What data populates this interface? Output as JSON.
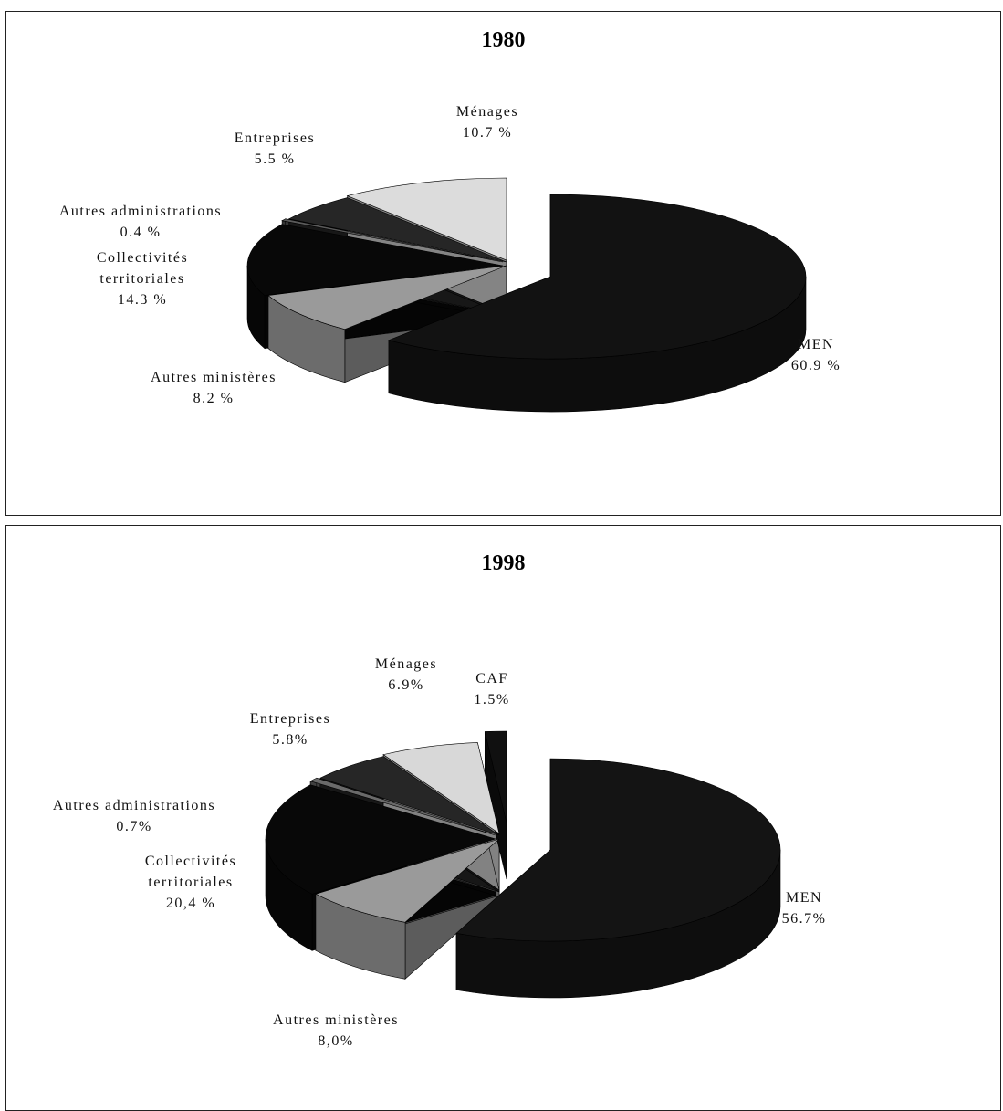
{
  "chart_data": [
    {
      "type": "pie",
      "title": "1980",
      "categories": [
        "MEN",
        "Autres ministères",
        "Collectivités territoriales",
        "Autres administrations",
        "Entreprises",
        "Ménages"
      ],
      "values": [
        60.9,
        8.2,
        14.3,
        0.4,
        5.5,
        10.7
      ],
      "value_labels": [
        "60.9 %",
        "8.2 %",
        "14.3 %",
        "0.4 %",
        "5.5 %",
        "10.7 %"
      ],
      "colors": [
        "#121212",
        "#9a9a9a",
        "#080808",
        "#5a5a5a",
        "#262626",
        "#dcdcdc"
      ]
    },
    {
      "type": "pie",
      "title": "1998",
      "categories": [
        "MEN",
        "Autres ministères",
        "Collectivités territoriales",
        "Autres administrations",
        "Entreprises",
        "Ménages",
        "CAF"
      ],
      "values": [
        56.7,
        8.0,
        20.4,
        0.7,
        5.8,
        6.9,
        1.5
      ],
      "value_labels": [
        "56.7%",
        "8,0%",
        "20,4 %",
        "0.7%",
        "5.8%",
        "6.9%",
        "1.5%"
      ],
      "colors": [
        "#141414",
        "#9a9a9a",
        "#080808",
        "#6a6a6a",
        "#262626",
        "#d8d8d8",
        "#101010"
      ]
    }
  ]
}
